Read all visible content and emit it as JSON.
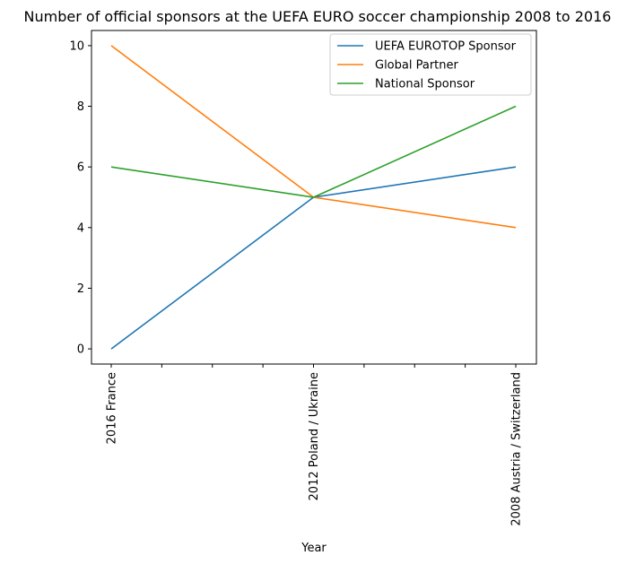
{
  "chart_data": {
    "type": "line",
    "title": "Number of official sponsors at the UEFA EURO soccer championship 2008 to 2016",
    "xlabel": "Year",
    "ylabel": "",
    "categories": [
      "2016 France",
      "2012 Poland / Ukraine",
      "2008 Austria / Switzerland"
    ],
    "ylim": [
      -0.5,
      10.5
    ],
    "yticks": [
      0,
      2,
      4,
      6,
      8,
      10
    ],
    "grid": false,
    "legend_position": "top-right",
    "series": [
      {
        "name": "UEFA EUROTOP Sponsor",
        "values": [
          0,
          5,
          6
        ],
        "color": "#1f77b4"
      },
      {
        "name": "Global Partner",
        "values": [
          10,
          5,
          4
        ],
        "color": "#ff7f0e"
      },
      {
        "name": "National Sponsor",
        "values": [
          6,
          5,
          8
        ],
        "color": "#2ca02c"
      }
    ]
  }
}
